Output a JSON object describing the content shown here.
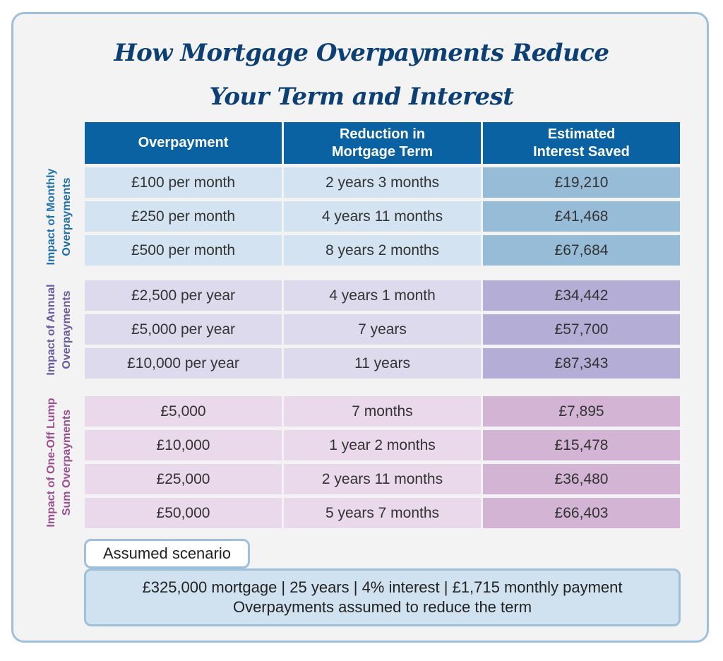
{
  "chart_data": {
    "type": "table",
    "title_lines": [
      "How Mortgage Overpayments Reduce",
      "Your Term and Interest"
    ],
    "columns": [
      "Overpayment",
      "Reduction in Mortgage Term",
      "Estimated Interest Saved"
    ],
    "groups": [
      {
        "label_lines": [
          "Impact of Monthly",
          "Overpayments"
        ],
        "color": "#1f6fa8",
        "rows": [
          [
            "£100 per month",
            "2 years 3 months",
            "£19,210"
          ],
          [
            "£250 per month",
            "4 years 11 months",
            "£41,468"
          ],
          [
            "£500 per month",
            "8 years 2 months",
            "£67,684"
          ]
        ]
      },
      {
        "label_lines": [
          "Impact of Annual",
          "Overpayments"
        ],
        "color": "#6a5a9e",
        "rows": [
          [
            "£2,500 per year",
            "4 years 1 month",
            "£34,442"
          ],
          [
            "£5,000 per year",
            "7 years",
            "£57,700"
          ],
          [
            "£10,000 per year",
            "11 years",
            "£87,343"
          ]
        ]
      },
      {
        "label_lines": [
          "Impact of One-Off Lump",
          "Sum Overpayments"
        ],
        "color": "#9b4f8f",
        "rows": [
          [
            "£5,000",
            "7 months",
            "£7,895"
          ],
          [
            "£10,000",
            "1 year 2 months",
            "£15,478"
          ],
          [
            "£25,000",
            "2 years 11 months",
            "£36,480"
          ],
          [
            "£50,000",
            "5 years 7 months",
            "£66,403"
          ]
        ]
      }
    ]
  },
  "header": {
    "col1": "Overpayment",
    "col2_lines": [
      "Reduction in",
      "Mortgage Term"
    ],
    "col3_lines": [
      "Estimated",
      "Interest Saved"
    ]
  },
  "scenario": {
    "tab_label": "Assumed scenario",
    "line1": "£325,000 mortgage | 25 years | 4% interest | £1,715 monthly payment",
    "line2": "Overpayments assumed to reduce the term"
  },
  "colors": {
    "title": "#0c3f73",
    "header_bg": "#0a62a3",
    "border": "#9fc0da"
  }
}
